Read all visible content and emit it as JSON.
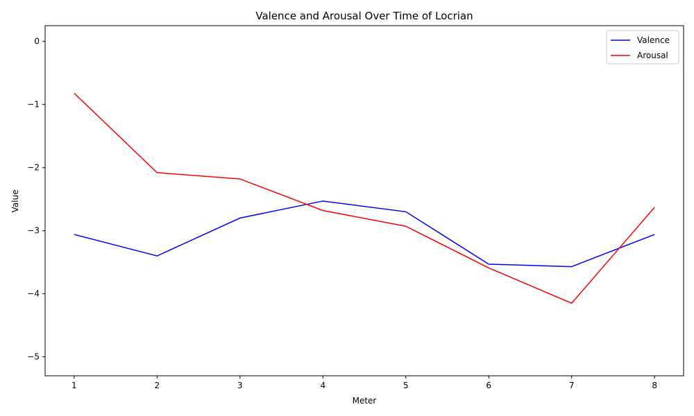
{
  "chart_data": {
    "type": "line",
    "title": "Valence and Arousal Over Time of Locrian",
    "xlabel": "Meter",
    "ylabel": "Value",
    "x": [
      1,
      2,
      3,
      4,
      5,
      6,
      7,
      8
    ],
    "xticks": [
      "1",
      "2",
      "3",
      "4",
      "5",
      "6",
      "7",
      "8"
    ],
    "yticks": [
      "0",
      "−1",
      "−2",
      "−3",
      "−4",
      "−5"
    ],
    "ytick_values": [
      0,
      -1,
      -2,
      -3,
      -4,
      -5
    ],
    "xlim": [
      0.65,
      8.35
    ],
    "ylim": [
      -5.3,
      0.25
    ],
    "grid": false,
    "legend_position": "top-right",
    "series": [
      {
        "name": "Valence",
        "color": "#0000ff",
        "values": [
          -3.06,
          -3.4,
          -2.8,
          -2.53,
          -2.7,
          -3.53,
          -3.57,
          -3.06
        ]
      },
      {
        "name": "Arousal",
        "color": "#ff0000",
        "values": [
          -0.82,
          -2.08,
          -2.18,
          -2.68,
          -2.93,
          -3.59,
          -4.15,
          -2.63
        ]
      }
    ]
  }
}
